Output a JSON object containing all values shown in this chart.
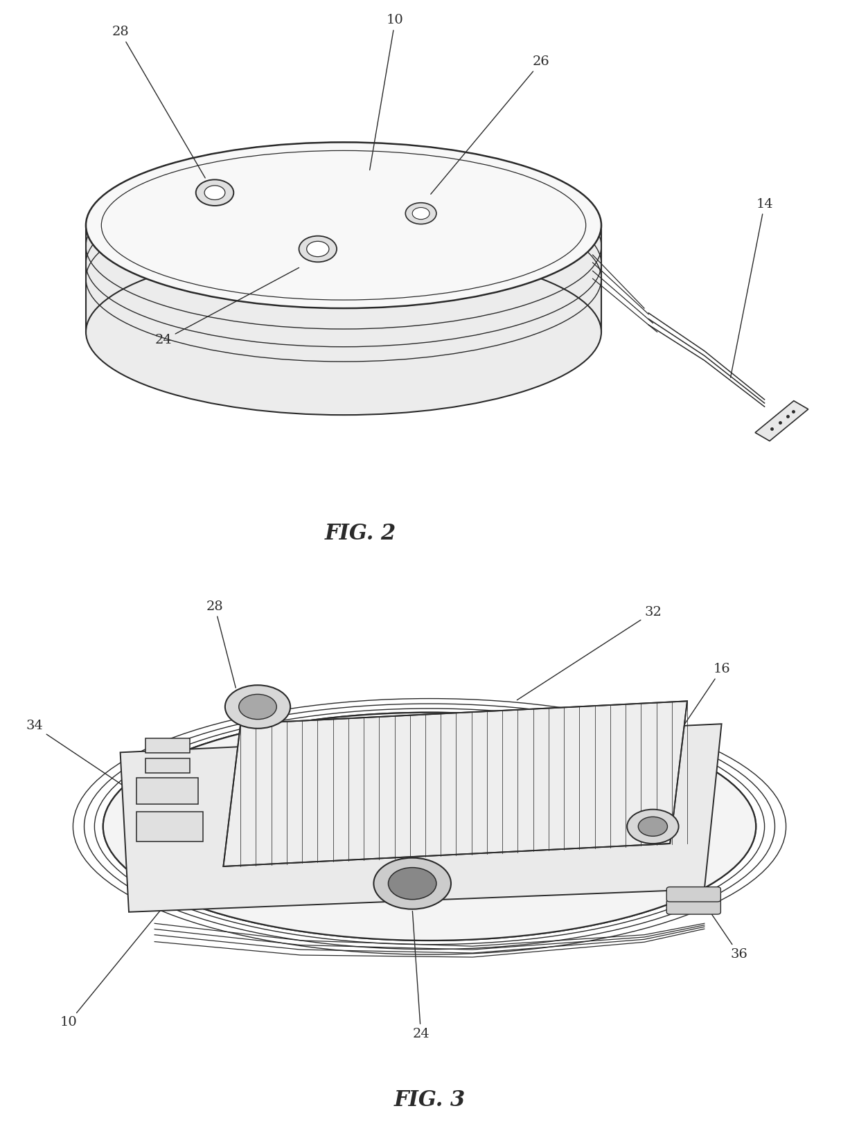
{
  "background_color": "#ffffff",
  "line_color": "#2a2a2a",
  "fig2_label": "FIG. 2",
  "fig3_label": "FIG. 3"
}
